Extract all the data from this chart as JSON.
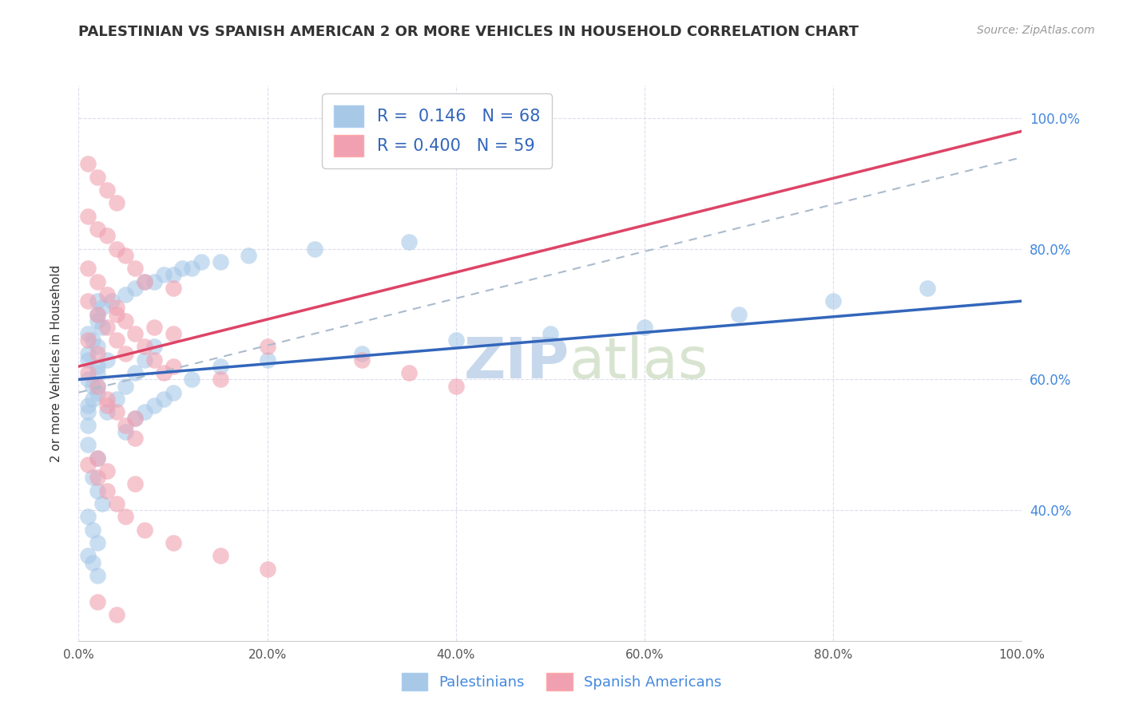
{
  "title": "PALESTINIAN VS SPANISH AMERICAN 2 OR MORE VEHICLES IN HOUSEHOLD CORRELATION CHART",
  "source": "Source: ZipAtlas.com",
  "ylabel": "2 or more Vehicles in Household",
  "r_blue": 0.146,
  "n_blue": 68,
  "r_pink": 0.4,
  "n_pink": 59,
  "blue_color": "#a8c8e8",
  "pink_color": "#f0a0b0",
  "trend_blue_color": "#3366bb",
  "trend_pink_color": "#dd4466",
  "trend_dashed_color": "#aabbcc",
  "watermark_color": "#c8d8ec",
  "legend_text_color": "#3366bb",
  "background_color": "#ffffff",
  "grid_color": "#ddddee",
  "title_color": "#333333",
  "blue_points_x": [
    0.01,
    0.02,
    0.02,
    0.01,
    0.02,
    0.02,
    0.01,
    0.01,
    0.015,
    0.025,
    0.03,
    0.02,
    0.02,
    0.015,
    0.01,
    0.01,
    0.01,
    0.02,
    0.015,
    0.01,
    0.02,
    0.015,
    0.02,
    0.025,
    0.01,
    0.015,
    0.02,
    0.01,
    0.02,
    0.015,
    0.03,
    0.04,
    0.05,
    0.06,
    0.07,
    0.08,
    0.05,
    0.06,
    0.07,
    0.08,
    0.09,
    0.1,
    0.12,
    0.15,
    0.2,
    0.3,
    0.4,
    0.5,
    0.6,
    0.7,
    0.8,
    0.9,
    0.02,
    0.025,
    0.035,
    0.05,
    0.06,
    0.07,
    0.08,
    0.09,
    0.1,
    0.11,
    0.12,
    0.13,
    0.15,
    0.18,
    0.25,
    0.35
  ],
  "blue_points_y": [
    0.67,
    0.65,
    0.62,
    0.63,
    0.69,
    0.72,
    0.6,
    0.64,
    0.66,
    0.68,
    0.63,
    0.61,
    0.59,
    0.57,
    0.55,
    0.53,
    0.56,
    0.58,
    0.59,
    0.5,
    0.48,
    0.45,
    0.43,
    0.41,
    0.39,
    0.37,
    0.35,
    0.33,
    0.3,
    0.32,
    0.55,
    0.57,
    0.59,
    0.61,
    0.63,
    0.65,
    0.52,
    0.54,
    0.55,
    0.56,
    0.57,
    0.58,
    0.6,
    0.62,
    0.63,
    0.64,
    0.66,
    0.67,
    0.68,
    0.7,
    0.72,
    0.74,
    0.7,
    0.71,
    0.72,
    0.73,
    0.74,
    0.75,
    0.75,
    0.76,
    0.76,
    0.77,
    0.77,
    0.78,
    0.78,
    0.79,
    0.8,
    0.81
  ],
  "pink_points_x": [
    0.01,
    0.02,
    0.01,
    0.02,
    0.03,
    0.04,
    0.05,
    0.06,
    0.01,
    0.02,
    0.03,
    0.04,
    0.05,
    0.06,
    0.07,
    0.08,
    0.09,
    0.01,
    0.02,
    0.03,
    0.04,
    0.05,
    0.06,
    0.07,
    0.01,
    0.02,
    0.03,
    0.04,
    0.05,
    0.1,
    0.15,
    0.01,
    0.02,
    0.03,
    0.04,
    0.05,
    0.07,
    0.1,
    0.15,
    0.2,
    0.04,
    0.08,
    0.1,
    0.1,
    0.2,
    0.01,
    0.02,
    0.03,
    0.04,
    0.3,
    0.35,
    0.4,
    0.02,
    0.04,
    0.02,
    0.03,
    0.06,
    0.03,
    0.06
  ],
  "pink_points_y": [
    0.66,
    0.64,
    0.61,
    0.59,
    0.57,
    0.55,
    0.53,
    0.51,
    0.77,
    0.75,
    0.73,
    0.71,
    0.69,
    0.67,
    0.65,
    0.63,
    0.61,
    0.85,
    0.83,
    0.82,
    0.8,
    0.79,
    0.77,
    0.75,
    0.72,
    0.7,
    0.68,
    0.66,
    0.64,
    0.62,
    0.6,
    0.47,
    0.45,
    0.43,
    0.41,
    0.39,
    0.37,
    0.35,
    0.33,
    0.31,
    0.7,
    0.68,
    0.74,
    0.67,
    0.65,
    0.93,
    0.91,
    0.89,
    0.87,
    0.63,
    0.61,
    0.59,
    0.26,
    0.24,
    0.48,
    0.46,
    0.44,
    0.56,
    0.54
  ],
  "trend_blue_slope": 0.12,
  "trend_blue_intercept": 0.6,
  "trend_pink_slope": 0.36,
  "trend_pink_intercept": 0.62,
  "dashed_slope": 0.36,
  "dashed_intercept": 0.58
}
